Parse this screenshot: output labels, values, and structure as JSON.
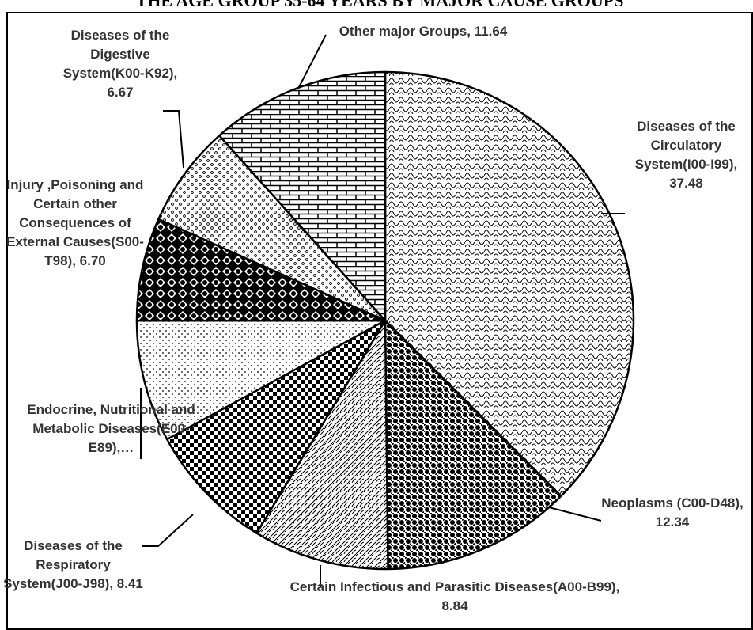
{
  "chart_data": {
    "type": "pie",
    "title": "THE AGE GROUP 35-64 YEARS BY MAJOR CAUSE GROUPS",
    "values": [
      37.48,
      12.34,
      8.84,
      8.41,
      7.92,
      6.7,
      6.67,
      11.64
    ],
    "value_labels": [
      "Diseases of the Circulatory System(I00-I99), 37.48",
      "Neoplasms (C00-D48), 12.34",
      "Certain Infectious and Parasitic Diseases(A00-B99), 8.84",
      "Diseases of the Respiratory System(J00-J98), 8.41",
      "Endocrine, Nutritional and Metabolic Diseases(E00-E89),…",
      "Injury ,Poisoning and Certain other Consequences of External Causes(S00-T98), 6.70",
      "Diseases of the Digestive System(K00-K92), 6.67",
      "Other major Groups, 11.64"
    ]
  }
}
